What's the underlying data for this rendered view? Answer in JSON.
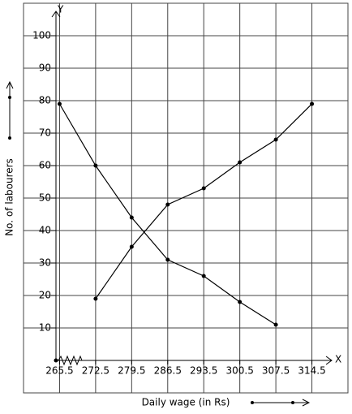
{
  "chart_data": {
    "type": "line",
    "x_axis_letter": "X",
    "y_axis_letter": "Y",
    "xlabel": "Daily wage (in Rs)",
    "ylabel": "No. of labourers",
    "series": [
      {
        "color": "#000000",
        "x": [
          265.5,
          272.5,
          279.5,
          286.5,
          293.5,
          300.5,
          307.5
        ],
        "values": [
          79,
          60,
          44,
          31,
          26,
          18,
          11
        ]
      },
      {
        "color": "#000000",
        "x": [
          272.5,
          279.5,
          286.5,
          293.5,
          300.5,
          307.5,
          314.5
        ],
        "values": [
          19,
          35,
          48,
          53,
          61,
          68,
          79
        ]
      }
    ],
    "xlim": [
      258.5,
      321.5
    ],
    "xticks": [
      265.5,
      272.5,
      279.5,
      286.5,
      293.5,
      300.5,
      307.5,
      314.5
    ],
    "ylim": [
      -10,
      110
    ],
    "yticks": [
      10,
      20,
      30,
      40,
      50,
      60,
      70,
      80,
      90,
      100
    ],
    "grid": true
  }
}
